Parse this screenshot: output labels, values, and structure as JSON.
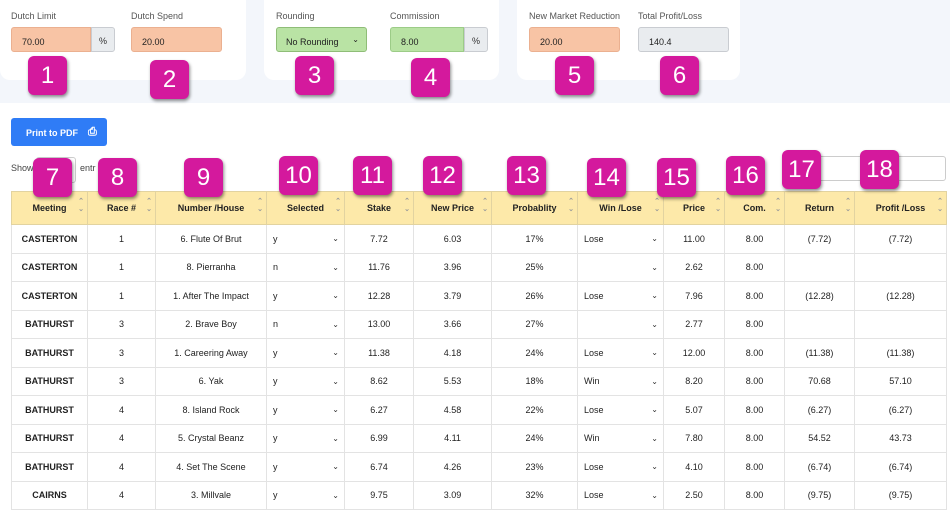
{
  "settings": {
    "dutch_limit": {
      "label": "Dutch Limit",
      "value": "70.00",
      "suffix": "%"
    },
    "dutch_spend": {
      "label": "Dutch Spend",
      "value": "20.00"
    },
    "rounding": {
      "label": "Rounding",
      "value": "No Rounding"
    },
    "commission": {
      "label": "Commission",
      "value": "8.00",
      "suffix": "%"
    },
    "new_market_reduction": {
      "label": "New Market Reduction",
      "value": "20.00"
    },
    "total_profit_loss": {
      "label": "Total Profit/Loss",
      "value": "140.4"
    }
  },
  "toolbar": {
    "print_label": "Print to PDF",
    "show_label": "Show",
    "entries_label": "entr"
  },
  "table": {
    "columns": [
      "Meeting",
      "Race #",
      "Number /House",
      "Selected",
      "Stake",
      "New Price",
      "Probablity",
      "Win /Lose",
      "Price",
      "Com.",
      "Return",
      "Profit /Loss"
    ],
    "rows": [
      [
        "CASTERTON",
        "1",
        "6. Flute Of Brut",
        "y",
        "7.72",
        "6.03",
        "17%",
        "Lose",
        "11.00",
        "8.00",
        "(7.72)",
        "(7.72)"
      ],
      [
        "CASTERTON",
        "1",
        "8. Pierranha",
        "n",
        "11.76",
        "3.96",
        "25%",
        "",
        "2.62",
        "8.00",
        "",
        ""
      ],
      [
        "CASTERTON",
        "1",
        "1. After The Impact",
        "y",
        "12.28",
        "3.79",
        "26%",
        "Lose",
        "7.96",
        "8.00",
        "(12.28)",
        "(12.28)"
      ],
      [
        "BATHURST",
        "3",
        "2. Brave Boy",
        "n",
        "13.00",
        "3.66",
        "27%",
        "",
        "2.77",
        "8.00",
        "",
        ""
      ],
      [
        "BATHURST",
        "3",
        "1. Careering Away",
        "y",
        "11.38",
        "4.18",
        "24%",
        "Lose",
        "12.00",
        "8.00",
        "(11.38)",
        "(11.38)"
      ],
      [
        "BATHURST",
        "3",
        "6. Yak",
        "y",
        "8.62",
        "5.53",
        "18%",
        "Win",
        "8.20",
        "8.00",
        "70.68",
        "57.10"
      ],
      [
        "BATHURST",
        "4",
        "8. Island Rock",
        "y",
        "6.27",
        "4.58",
        "22%",
        "Lose",
        "5.07",
        "8.00",
        "(6.27)",
        "(6.27)"
      ],
      [
        "BATHURST",
        "4",
        "5. Crystal Beanz",
        "y",
        "6.99",
        "4.11",
        "24%",
        "Win",
        "7.80",
        "8.00",
        "54.52",
        "43.73"
      ],
      [
        "BATHURST",
        "4",
        "4. Set The Scene",
        "y",
        "6.74",
        "4.26",
        "23%",
        "Lose",
        "4.10",
        "8.00",
        "(6.74)",
        "(6.74)"
      ],
      [
        "CAIRNS",
        "4",
        "3. Millvale",
        "y",
        "9.75",
        "3.09",
        "32%",
        "Lose",
        "2.50",
        "8.00",
        "(9.75)",
        "(9.75)"
      ]
    ]
  },
  "badges": [
    "1",
    "2",
    "3",
    "4",
    "5",
    "6",
    "7",
    "8",
    "9",
    "10",
    "11",
    "12",
    "13",
    "14",
    "15",
    "16",
    "17",
    "18"
  ],
  "colors": {
    "badge": "#d4199d",
    "header_bg": "#fde9a9",
    "input_orange": "#f8c4a5",
    "input_green": "#b9e3a4",
    "button_blue": "#2f7cf6"
  }
}
